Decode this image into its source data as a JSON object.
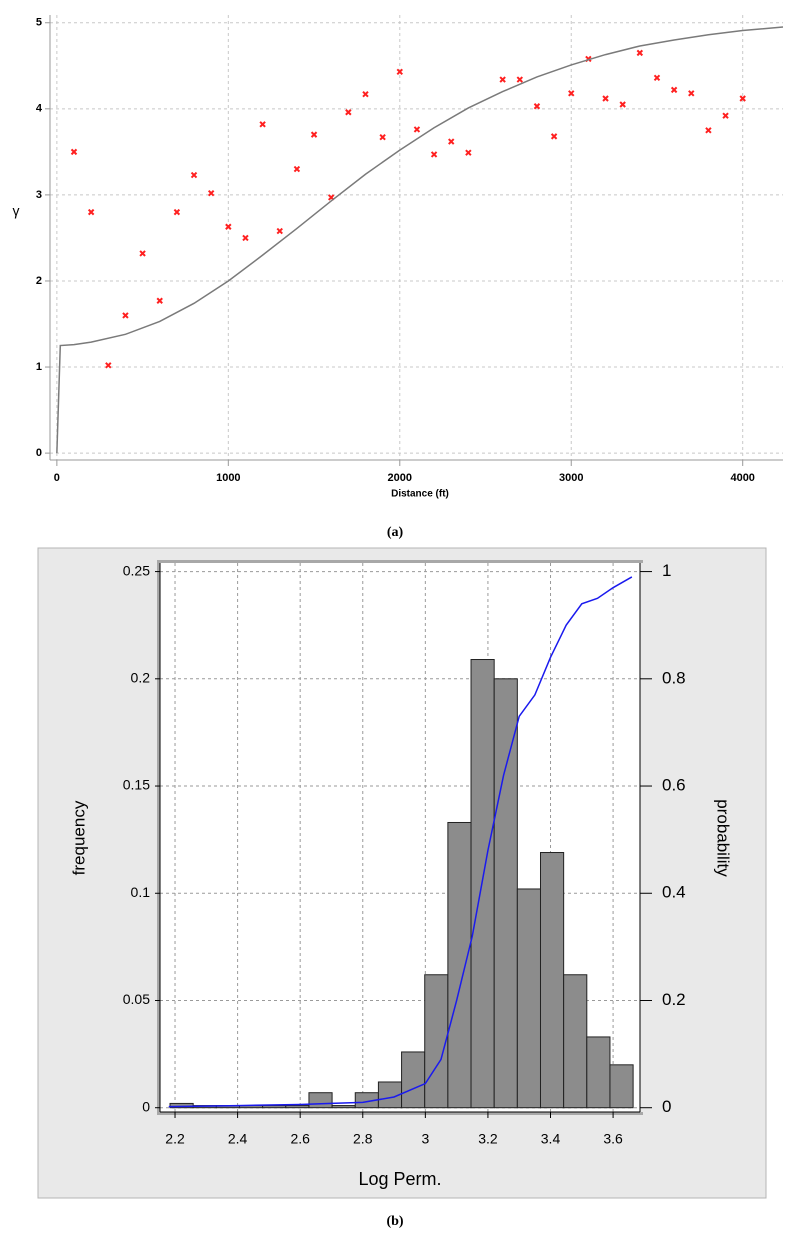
{
  "chart_data": [
    {
      "type": "scatter",
      "caption": "(a)",
      "xlabel": "Distance (ft)",
      "ylabel": "γ",
      "xlim": [
        -40,
        4235
      ],
      "ylim": [
        -0.08,
        5.09
      ],
      "xticks": [
        0,
        1000,
        2000,
        3000,
        4000
      ],
      "yticks": [
        0,
        1,
        2,
        3,
        4,
        5
      ],
      "grid": true,
      "series": [
        {
          "type": "scatter",
          "color": "#ff2020",
          "x": [
            100,
            200,
            300,
            400,
            500,
            600,
            700,
            800,
            900,
            1000,
            1100,
            1200,
            1300,
            1400,
            1500,
            1600,
            1700,
            1800,
            1900,
            2000,
            2100,
            2200,
            2300,
            2400,
            2600,
            2700,
            2800,
            2900,
            3000,
            3100,
            3200,
            3300,
            3400,
            3500,
            3600,
            3700,
            3800,
            3900,
            4000
          ],
          "values": [
            3.5,
            2.8,
            1.02,
            1.6,
            2.32,
            1.77,
            2.8,
            3.23,
            3.02,
            2.63,
            2.5,
            3.82,
            2.58,
            3.3,
            3.7,
            2.97,
            3.96,
            4.17,
            3.67,
            4.43,
            3.76,
            3.47,
            3.62,
            3.49,
            4.34,
            4.34,
            4.03,
            3.68,
            4.18,
            4.58,
            4.12,
            4.05,
            4.65,
            4.36,
            4.22,
            4.18,
            3.75,
            3.92,
            4.12
          ]
        },
        {
          "type": "line",
          "color": "#7a7a7a",
          "x": [
            0,
            20,
            100,
            200,
            400,
            600,
            800,
            1000,
            1200,
            1400,
            1600,
            1800,
            2000,
            2200,
            2400,
            2600,
            2800,
            3000,
            3200,
            3400,
            3600,
            3800,
            4000,
            4235
          ],
          "values": [
            0,
            1.25,
            1.26,
            1.29,
            1.38,
            1.53,
            1.74,
            2.0,
            2.3,
            2.61,
            2.93,
            3.24,
            3.52,
            3.78,
            4.01,
            4.2,
            4.37,
            4.51,
            4.63,
            4.73,
            4.8,
            4.86,
            4.91,
            4.95
          ]
        }
      ]
    },
    {
      "type": "histogram",
      "caption": "(b)",
      "xlabel": "Log Perm.",
      "ylabel": "frequency",
      "y2label": "probability",
      "xlim": [
        2.152,
        3.686
      ],
      "ylim": [
        -0.002,
        0.254
      ],
      "y2lim": [
        -0.008,
        1.016
      ],
      "xticks": [
        2.2,
        2.4,
        2.6,
        2.8,
        3,
        3.2,
        3.4,
        3.6
      ],
      "yticks": [
        0,
        0.05,
        0.1,
        0.15,
        0.2,
        0.25
      ],
      "y2ticks": [
        0,
        0.2,
        0.4,
        0.6,
        0.8,
        1
      ],
      "grid": true,
      "color": "#8c8c8c",
      "bins": [
        2.184,
        2.258,
        2.332,
        2.406,
        2.48,
        2.554,
        2.628,
        2.702,
        2.776,
        2.85,
        2.924,
        2.998,
        3.072,
        3.146,
        3.22,
        3.294,
        3.368,
        3.442,
        3.516,
        3.59,
        3.664
      ],
      "values": [
        0.002,
        0.001,
        0.001,
        0.001,
        0.001,
        0.001,
        0.007,
        0.001,
        0.007,
        0.012,
        0.026,
        0.062,
        0.133,
        0.209,
        0.2,
        0.102,
        0.119,
        0.062,
        0.033,
        0.02
      ],
      "series": [
        {
          "type": "line",
          "axis": "y2",
          "color": "#1a1aee",
          "x": [
            2.18,
            2.4,
            2.6,
            2.7,
            2.8,
            2.9,
            3.0,
            3.05,
            3.1,
            3.15,
            3.2,
            3.25,
            3.3,
            3.35,
            3.4,
            3.45,
            3.5,
            3.55,
            3.6,
            3.66
          ],
          "values": [
            0.002,
            0.004,
            0.006,
            0.008,
            0.01,
            0.02,
            0.045,
            0.09,
            0.2,
            0.32,
            0.48,
            0.62,
            0.73,
            0.77,
            0.84,
            0.9,
            0.94,
            0.95,
            0.97,
            0.99
          ]
        }
      ]
    }
  ]
}
